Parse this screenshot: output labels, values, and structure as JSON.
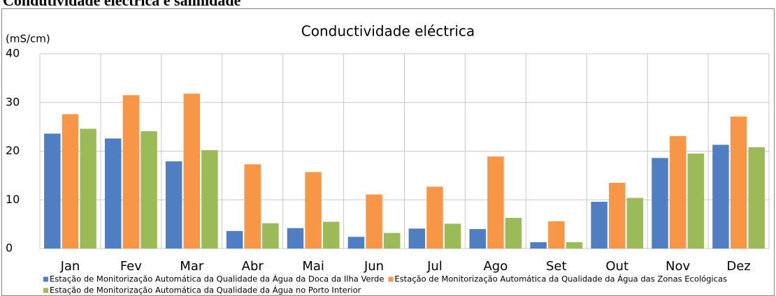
{
  "page_title": "Condutividade eléctrica e salinidade",
  "chart_data": {
    "type": "bar",
    "title": "Conductividade eléctrica",
    "y_label": "(mS/cm)",
    "categories": [
      "Jan",
      "Fev",
      "Mar",
      "Abr",
      "Mai",
      "Jun",
      "Jul",
      "Ago",
      "Set",
      "Out",
      "Nov",
      "Dez"
    ],
    "series": [
      {
        "name": "Estação de Monitorização Automática da Qualidade da Água da Doca da Ilha Verde",
        "color": "#4f7ec2",
        "values": [
          23.6,
          22.6,
          17.9,
          3.6,
          4.2,
          2.4,
          4.1,
          4.0,
          1.3,
          9.6,
          18.6,
          21.3
        ]
      },
      {
        "name": "Estação de Monitorização Automática da Qualidade da Água das Zonas Ecológicas",
        "color": "#f79646",
        "values": [
          27.6,
          31.5,
          31.8,
          17.3,
          15.7,
          11.1,
          12.7,
          18.9,
          5.6,
          13.5,
          23.1,
          27.1
        ]
      },
      {
        "name": "Estação de Monitorização Automática da Qualidade da Água no Porto Interior",
        "color": "#9bbb59",
        "values": [
          24.6,
          24.1,
          20.2,
          5.2,
          5.5,
          3.2,
          5.1,
          6.3,
          1.3,
          10.4,
          19.5,
          20.8
        ]
      }
    ],
    "ylim": [
      0,
      40
    ],
    "yticks": [
      0,
      10,
      20,
      30,
      40
    ],
    "grid": true
  }
}
